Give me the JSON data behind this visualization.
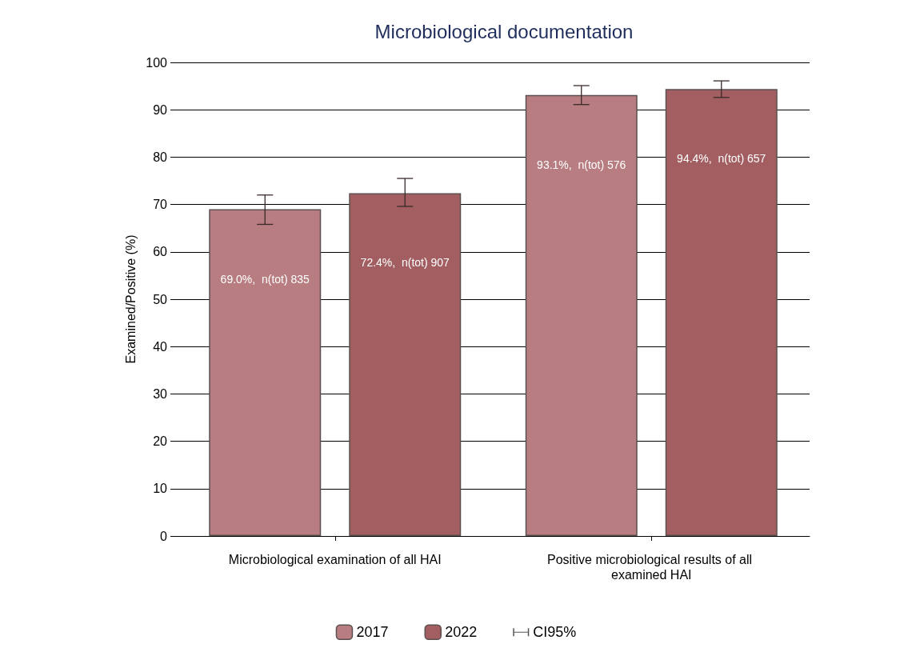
{
  "chart_data": {
    "type": "bar",
    "title": "Microbiological documentation",
    "ylabel": "Examined/Positive (%)",
    "categories": [
      "Microbiological examination of all HAI",
      "Positive microbiological results of all examined HAI"
    ],
    "series": [
      {
        "name": "2017",
        "color": "#b77d80",
        "values": [
          69.0,
          93.1
        ],
        "errors": [
          [
            65.8,
            72.0
          ],
          [
            91.1,
            95.1
          ]
        ],
        "value_labels": [
          "69.0%,  n(tot) 835",
          "93.1%,  n(tot) 576"
        ]
      },
      {
        "name": "2022",
        "color": "#a35e62",
        "values": [
          72.4,
          94.4
        ],
        "errors": [
          [
            69.6,
            75.5
          ],
          [
            92.6,
            96.1
          ]
        ],
        "value_labels": [
          "72.4%,  n(tot) 907",
          "94.4%,  n(tot) 657"
        ]
      }
    ],
    "annotations": [
      "CI95%"
    ],
    "ylim": [
      0,
      100
    ],
    "yticks": [
      0,
      10,
      20,
      30,
      40,
      50,
      60,
      70,
      80,
      90,
      100
    ],
    "grid": "y",
    "legend": "bottom"
  }
}
